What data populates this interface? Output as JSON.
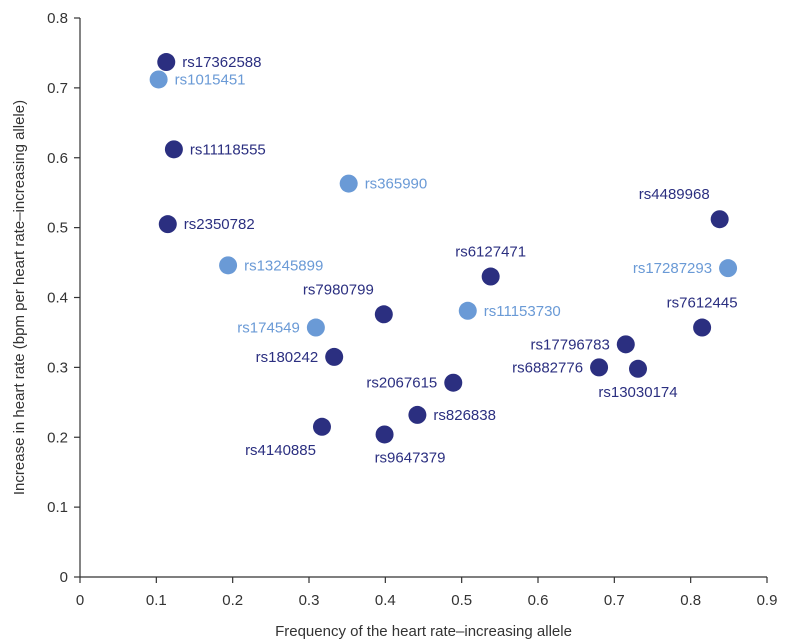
{
  "chart_data": {
    "type": "scatter",
    "xlabel": "Frequency of the heart rate–increasing allele",
    "ylabel": "Increase in heart rate (bpm per heart rate–increasing allele)",
    "xlim": [
      0,
      0.9
    ],
    "ylim": [
      0,
      0.8
    ],
    "x_ticks": [
      "0",
      "0.1",
      "0.2",
      "0.3",
      "0.4",
      "0.5",
      "0.6",
      "0.7",
      "0.8",
      "0.9"
    ],
    "y_ticks": [
      "0",
      "0.1",
      "0.2",
      "0.3",
      "0.4",
      "0.5",
      "0.6",
      "0.7",
      "0.8"
    ],
    "grid": false,
    "colors": {
      "dark": "#2b2f80",
      "light": "#6a9ad6",
      "axis": "#333333"
    },
    "points": [
      {
        "label": "rs17362588",
        "x": 0.113,
        "y": 0.737,
        "shade": "dark",
        "label_pos": "right"
      },
      {
        "label": "rs1015451",
        "x": 0.103,
        "y": 0.712,
        "shade": "light",
        "label_pos": "right"
      },
      {
        "label": "rs11118555",
        "x": 0.123,
        "y": 0.612,
        "shade": "dark",
        "label_pos": "right"
      },
      {
        "label": "rs365990",
        "x": 0.352,
        "y": 0.563,
        "shade": "light",
        "label_pos": "right"
      },
      {
        "label": "rs2350782",
        "x": 0.115,
        "y": 0.505,
        "shade": "dark",
        "label_pos": "right"
      },
      {
        "label": "rs4489968",
        "x": 0.838,
        "y": 0.512,
        "shade": "dark",
        "label_pos": "above-left"
      },
      {
        "label": "rs13245899",
        "x": 0.194,
        "y": 0.446,
        "shade": "light",
        "label_pos": "right"
      },
      {
        "label": "rs6127471",
        "x": 0.538,
        "y": 0.43,
        "shade": "dark",
        "label_pos": "above"
      },
      {
        "label": "rs17287293",
        "x": 0.849,
        "y": 0.442,
        "shade": "light",
        "label_pos": "left"
      },
      {
        "label": "rs7980799",
        "x": 0.398,
        "y": 0.376,
        "shade": "dark",
        "label_pos": "above-left"
      },
      {
        "label": "rs11153730",
        "x": 0.508,
        "y": 0.381,
        "shade": "light",
        "label_pos": "right"
      },
      {
        "label": "rs7612445",
        "x": 0.815,
        "y": 0.357,
        "shade": "dark",
        "label_pos": "above"
      },
      {
        "label": "rs174549",
        "x": 0.309,
        "y": 0.357,
        "shade": "light",
        "label_pos": "left"
      },
      {
        "label": "rs17796783",
        "x": 0.715,
        "y": 0.333,
        "shade": "dark",
        "label_pos": "left"
      },
      {
        "label": "rs180242",
        "x": 0.333,
        "y": 0.315,
        "shade": "dark",
        "label_pos": "left"
      },
      {
        "label": "rs6882776",
        "x": 0.68,
        "y": 0.3,
        "shade": "dark",
        "label_pos": "left"
      },
      {
        "label": "rs13030174",
        "x": 0.731,
        "y": 0.298,
        "shade": "dark",
        "label_pos": "below"
      },
      {
        "label": "rs2067615",
        "x": 0.489,
        "y": 0.278,
        "shade": "dark",
        "label_pos": "left"
      },
      {
        "label": "rs826838",
        "x": 0.442,
        "y": 0.232,
        "shade": "dark",
        "label_pos": "right"
      },
      {
        "label": "rs4140885",
        "x": 0.317,
        "y": 0.215,
        "shade": "dark",
        "label_pos": "below-left"
      },
      {
        "label": "rs9647379",
        "x": 0.399,
        "y": 0.204,
        "shade": "dark",
        "label_pos": "below-right"
      }
    ]
  }
}
